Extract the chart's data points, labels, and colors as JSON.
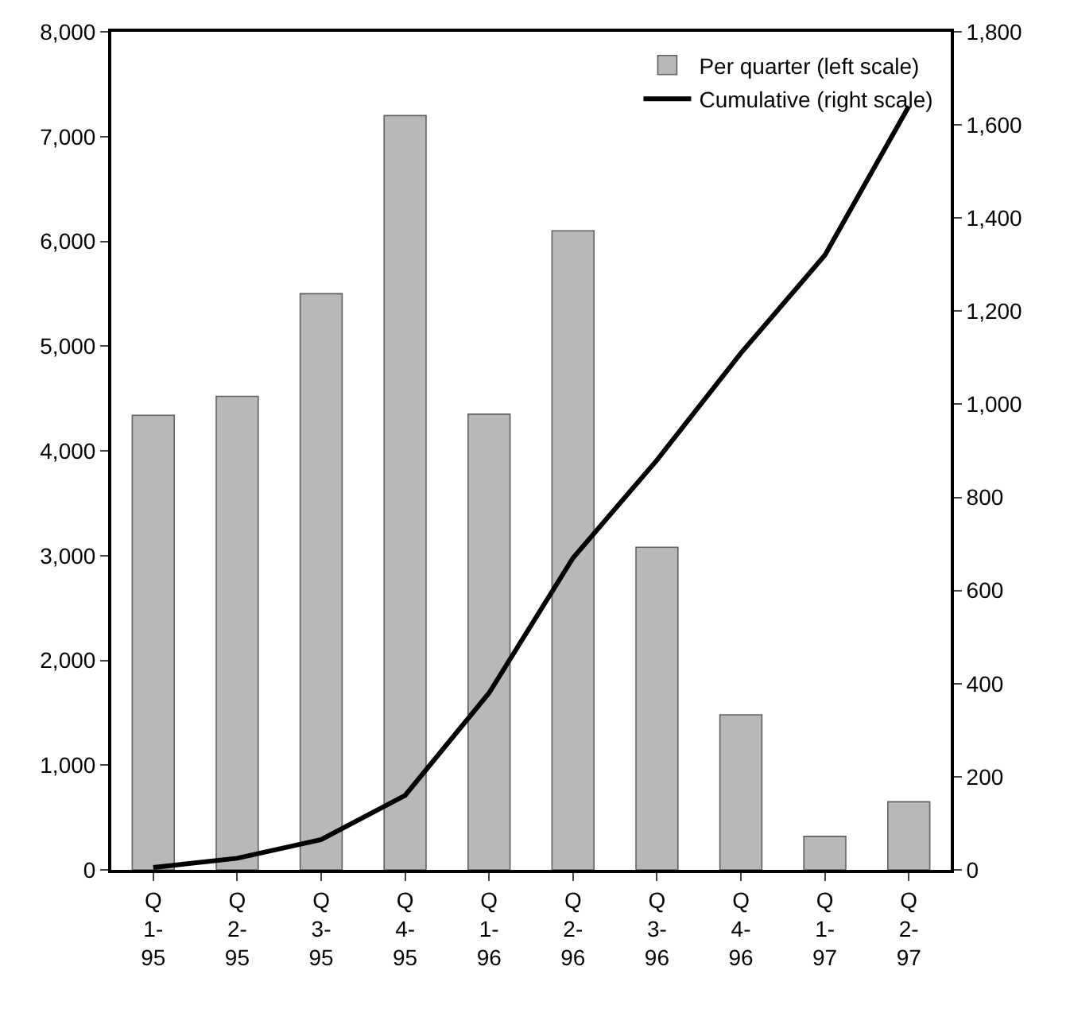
{
  "chart_data": {
    "type": "bar",
    "categories": [
      "Q\n1-\n95",
      "Q\n2-\n95",
      "Q\n3-\n95",
      "Q\n4-\n95",
      "Q\n1-\n96",
      "Q\n2-\n96",
      "Q\n3-\n96",
      "Q\n4-\n96",
      "Q\n1-\n97",
      "Q\n2-\n97"
    ],
    "series": [
      {
        "name": "Per quarter (left scale)",
        "color": "#b8b8b8",
        "values": [
          4340,
          4520,
          5500,
          7200,
          4350,
          6100,
          3080,
          1480,
          320,
          650
        ]
      },
      {
        "name": "Cumulative (right scale)",
        "type": "line",
        "axis": "y2",
        "color": "#000000",
        "values": [
          5,
          25,
          65,
          160,
          380,
          670,
          880,
          1110,
          1320,
          1640
        ]
      }
    ],
    "ylim": [
      0,
      8000
    ],
    "yticks": [
      {
        "value": 0,
        "label": "0"
      },
      {
        "value": 1000,
        "label": "1,000"
      },
      {
        "value": 2000,
        "label": "2,000"
      },
      {
        "value": 3000,
        "label": "3,000"
      },
      {
        "value": 4000,
        "label": "4,000"
      },
      {
        "value": 5000,
        "label": "5,000"
      },
      {
        "value": 6000,
        "label": "6,000"
      },
      {
        "value": 7000,
        "label": "7,000"
      },
      {
        "value": 8000,
        "label": "8,000"
      }
    ],
    "y2lim": [
      0,
      1800
    ],
    "y2ticks": [
      0,
      200,
      400,
      600,
      800,
      {
        "value": 1000,
        "label": "1,000"
      },
      {
        "value": 1200,
        "label": "1,200"
      },
      {
        "value": 1400,
        "label": "1,400"
      },
      {
        "value": 1600,
        "label": "1,600"
      },
      {
        "value": 1800,
        "label": "1,800"
      }
    ],
    "legend": "top right",
    "marker": "none",
    "line_style": "solid"
  }
}
